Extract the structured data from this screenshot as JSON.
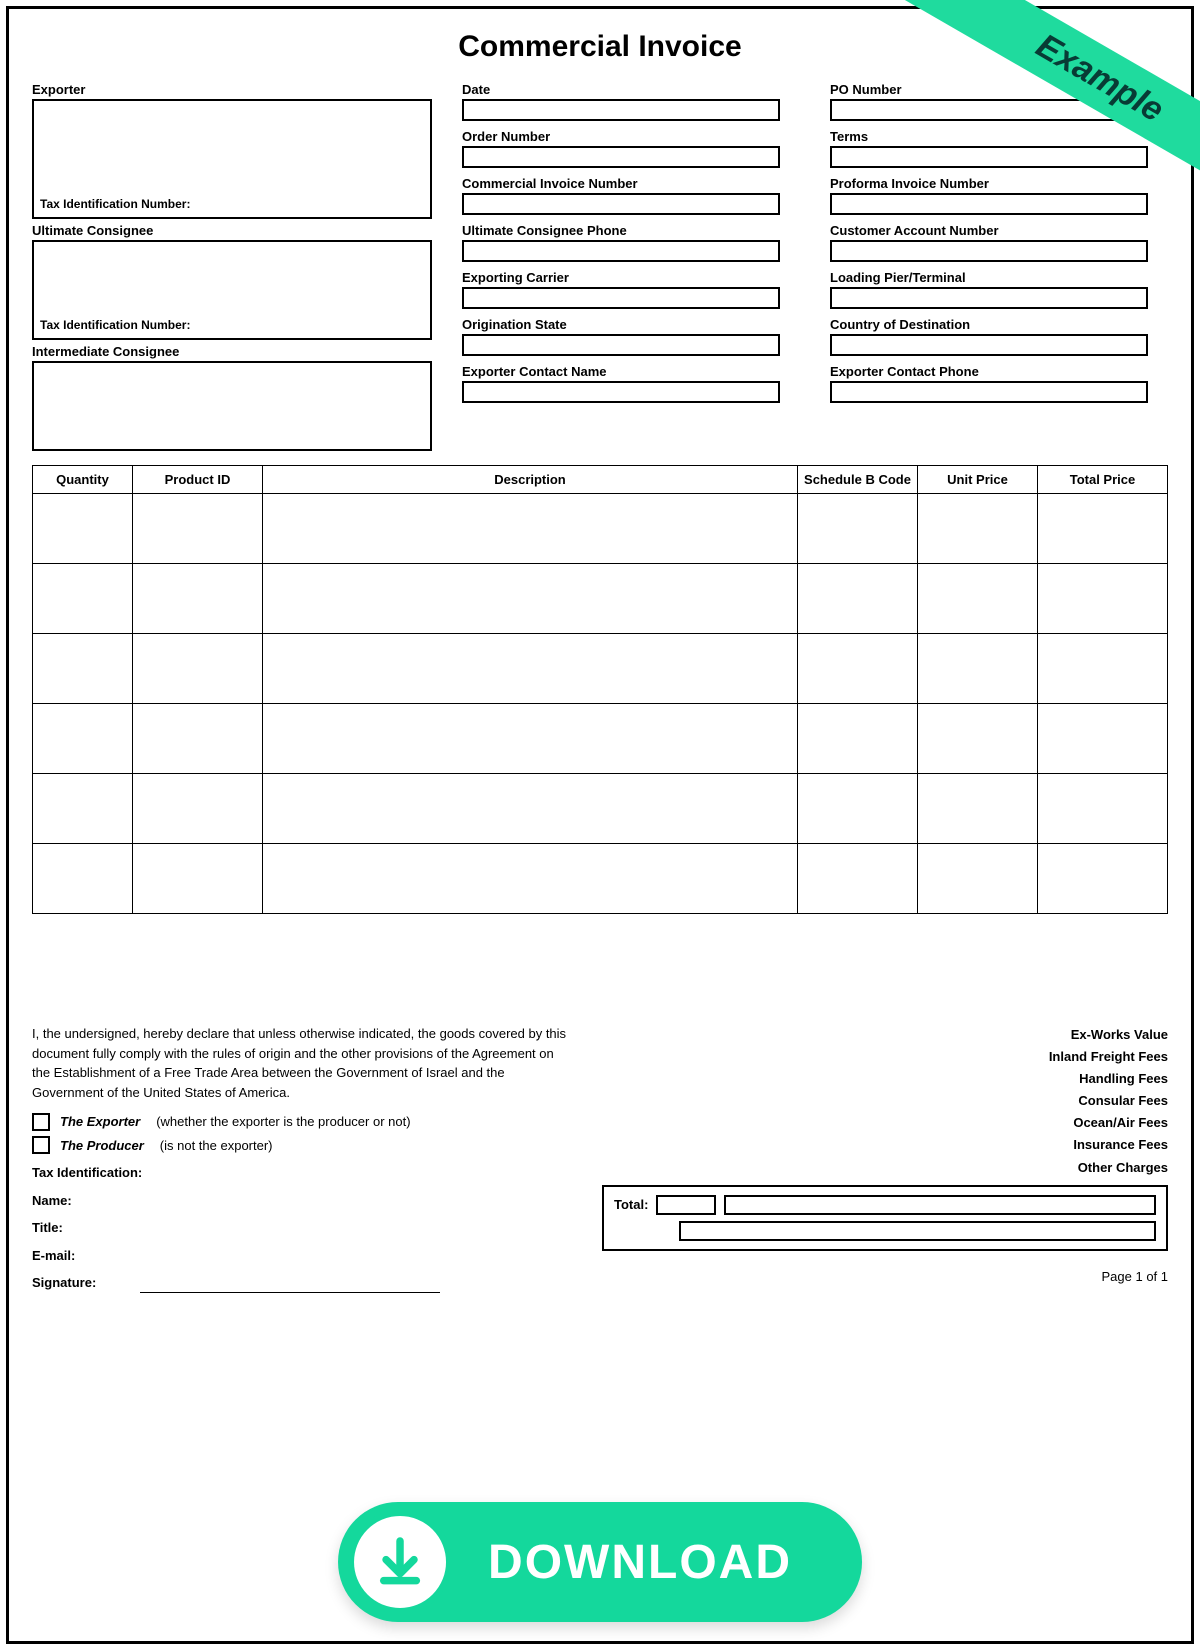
{
  "ribbon": "Example",
  "title": "Commercial Invoice",
  "left": {
    "exporter_label": "Exporter",
    "exporter_tin": "Tax Identification Number:",
    "ultimate_label": "Ultimate Consignee",
    "ultimate_tin": "Tax Identification Number:",
    "intermediate_label": "Intermediate Consignee"
  },
  "mid_fields": [
    "Date",
    "Order Number",
    "Commercial Invoice Number",
    "Ultimate Consignee Phone",
    "Exporting Carrier",
    "Origination State",
    "Exporter Contact Name"
  ],
  "right_fields": [
    "PO Number",
    "Terms",
    "Proforma Invoice Number",
    "Customer Account Number",
    "Loading Pier/Terminal",
    "Country of Destination",
    "Exporter Contact Phone"
  ],
  "table": {
    "headers": [
      "Quantity",
      "Product ID",
      "Description",
      "Schedule B Code",
      "Unit Price",
      "Total Price"
    ],
    "row_count": 6
  },
  "declaration": "I, the undersigned, hereby declare that unless otherwise indicated, the goods covered by this document fully comply with the rules of origin and the other provisions of the Agreement on the Establishment of a Free Trade Area between the Government of Israel and the Government of the United States of America.",
  "cb_exporter_role": "The Exporter",
  "cb_exporter_note": "(whether the exporter is the producer or not)",
  "cb_producer_role": "The Producer",
  "cb_producer_note": "(is not the exporter)",
  "sig": {
    "tax_id": "Tax Identification:",
    "name": "Name:",
    "title": "Title:",
    "email": "E-mail:",
    "signature": "Signature:"
  },
  "fees": [
    "Ex-Works Value",
    "Inland Freight Fees",
    "Handling Fees",
    "Consular Fees",
    "Ocean/Air Fees",
    "Insurance Fees",
    "Other Charges"
  ],
  "total_label": "Total:",
  "page_num": "Page 1 of 1",
  "download_label": "DOWNLOAD",
  "colors": {
    "accent": "#14d89c",
    "ribbon": "#1fdb9e",
    "ribbon_text": "#083b35"
  }
}
